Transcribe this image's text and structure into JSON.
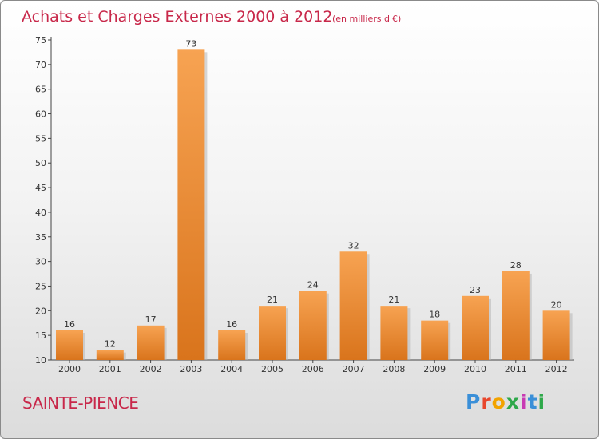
{
  "chart_data": {
    "type": "bar",
    "title": "Achats et Charges Externes 2000 à 2012",
    "unit_label": "(en milliers d'€)",
    "categories": [
      "2000",
      "2001",
      "2002",
      "2003",
      "2004",
      "2005",
      "2006",
      "2007",
      "2008",
      "2009",
      "2010",
      "2011",
      "2012"
    ],
    "values": [
      16,
      12,
      17,
      73,
      16,
      21,
      24,
      32,
      21,
      18,
      23,
      28,
      20
    ],
    "data_labels": [
      "16",
      "12",
      "17",
      "73",
      "16",
      "21",
      "24",
      "32",
      "21",
      "18",
      "23",
      "28",
      "20"
    ],
    "ylim": [
      10,
      75
    ],
    "yticks": [
      10,
      15,
      20,
      25,
      30,
      35,
      40,
      45,
      50,
      55,
      60,
      65,
      70,
      75
    ],
    "xlabel": "",
    "ylabel": "",
    "grid": false,
    "bar_color_top": "#f7a352",
    "bar_color_bottom": "#d9741c",
    "bar_shadow_color": "#b7b7b7"
  },
  "footer": {
    "place_name": "SAINTE-PIENCE",
    "logo_text": "Proxiti",
    "logo_colors": [
      "#3a8fd8",
      "#e8472d",
      "#f2a300",
      "#2ea84a",
      "#c83ab3",
      "#3a8fd8",
      "#2ea84a"
    ]
  }
}
